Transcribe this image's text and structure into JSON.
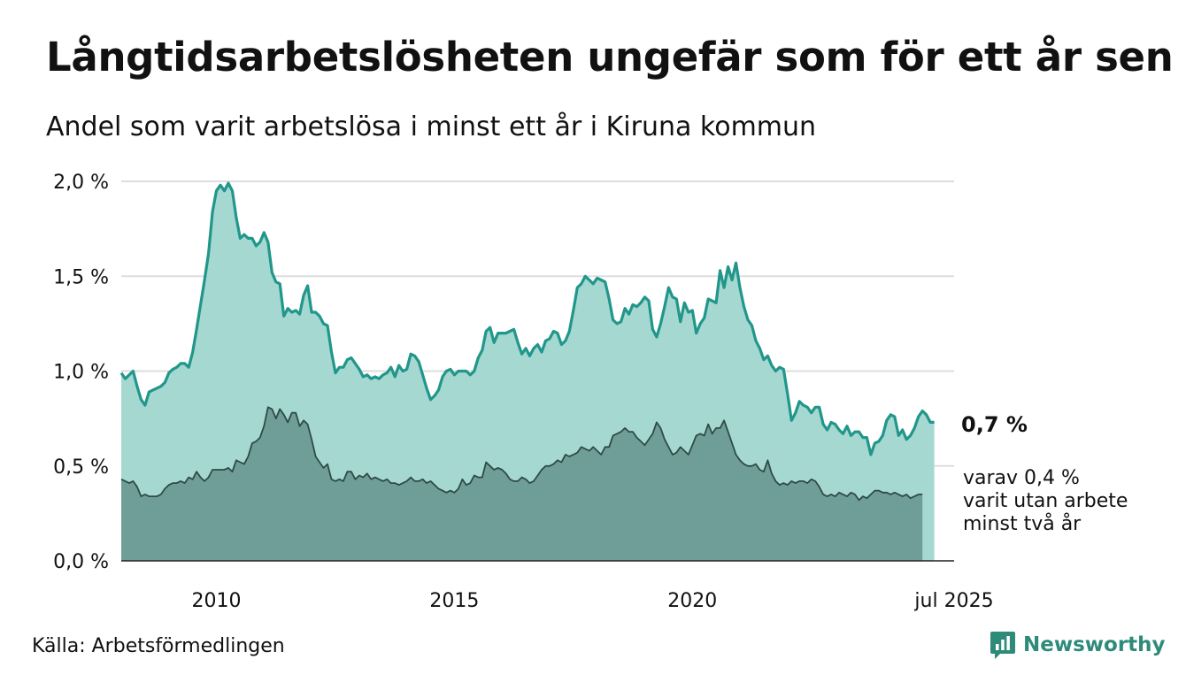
{
  "title": "Långtidsarbetslösheten ungefär som för ett år sen",
  "subtitle": "Andel som varit arbetslösa i minst ett år i Kiruna kommun",
  "source": "Källa: Arbetsförmedlingen",
  "brand": "Newsworthy",
  "end_label_main": "0,7 %",
  "end_label_sub": [
    "varav 0,4 %",
    "varit utan arbete",
    "minst två år"
  ],
  "colors": {
    "series1_fill": "#a6d8d2",
    "series1_line": "#21968a",
    "series2_fill": "#6f9e98",
    "series2_line": "#2f4a47",
    "grid": "#dddddd",
    "brand": "#2e8b7a"
  },
  "chart_data": {
    "type": "area",
    "title": "Långtidsarbetslösheten ungefär som för ett år sen",
    "subtitle": "Andel som varit arbetslösa i minst ett år i Kiruna kommun",
    "xlabel": "",
    "ylabel": "",
    "x_start": "2008-01",
    "x_end": "2025-07",
    "x_step": "month",
    "xlim": [
      2008.0,
      2025.5
    ],
    "ylim": [
      0,
      2.0
    ],
    "x_ticks": [
      {
        "value": 2010,
        "label": "2010"
      },
      {
        "value": 2015,
        "label": "2015"
      },
      {
        "value": 2020,
        "label": "2020"
      },
      {
        "value": 2025.5,
        "label": "jul 2025"
      }
    ],
    "y_ticks": [
      {
        "value": 0,
        "label": "0,0 %"
      },
      {
        "value": 0.5,
        "label": "0,5 %"
      },
      {
        "value": 1.0,
        "label": "1,0 %"
      },
      {
        "value": 1.5,
        "label": "1,5 %"
      },
      {
        "value": 2.0,
        "label": "2,0 %"
      }
    ],
    "grid": true,
    "series": [
      {
        "values": [
          0.99,
          0.96,
          0.98,
          1.0,
          0.92,
          0.85,
          0.82,
          0.89,
          0.9,
          0.91,
          0.92,
          0.94,
          0.99,
          1.01,
          1.02,
          1.04,
          1.04,
          1.02,
          1.1,
          1.22,
          1.35,
          1.48,
          1.62,
          1.84,
          1.95,
          1.98,
          1.95,
          1.99,
          1.95,
          1.81,
          1.7,
          1.72,
          1.7,
          1.7,
          1.66,
          1.68,
          1.73,
          1.68,
          1.52,
          1.47,
          1.46,
          1.29,
          1.33,
          1.31,
          1.32,
          1.3,
          1.4,
          1.45,
          1.31,
          1.31,
          1.29,
          1.25,
          1.24,
          1.1,
          0.99,
          1.02,
          1.02,
          1.06,
          1.07,
          1.04,
          1.01,
          0.97,
          0.98,
          0.96,
          0.97,
          0.96,
          0.98,
          0.99,
          1.02,
          0.97,
          1.03,
          1.0,
          1.01,
          1.09,
          1.08,
          1.05,
          0.98,
          0.91,
          0.85,
          0.87,
          0.9,
          0.97,
          1.0,
          1.01,
          0.98,
          1.0,
          1.0,
          1.0,
          0.98,
          1.0,
          1.07,
          1.11,
          1.21,
          1.23,
          1.15,
          1.2,
          1.2,
          1.2,
          1.21,
          1.22,
          1.15,
          1.09,
          1.12,
          1.08,
          1.12,
          1.14,
          1.1,
          1.16,
          1.17,
          1.21,
          1.2,
          1.14,
          1.16,
          1.21,
          1.32,
          1.44,
          1.46,
          1.5,
          1.48,
          1.46,
          1.49,
          1.48,
          1.47,
          1.38,
          1.27,
          1.25,
          1.26,
          1.33,
          1.3,
          1.35,
          1.34,
          1.36,
          1.39,
          1.37,
          1.22,
          1.18,
          1.25,
          1.34,
          1.44,
          1.39,
          1.38,
          1.26,
          1.36,
          1.31,
          1.32,
          1.2,
          1.25,
          1.28,
          1.38,
          1.37,
          1.36,
          1.53,
          1.44,
          1.55,
          1.48,
          1.57,
          1.44,
          1.34,
          1.27,
          1.24,
          1.16,
          1.12,
          1.06,
          1.08,
          1.03,
          1.0,
          1.02,
          1.01,
          0.88,
          0.74,
          0.78,
          0.84,
          0.82,
          0.81,
          0.78,
          0.81,
          0.81,
          0.72,
          0.69,
          0.73,
          0.72,
          0.69,
          0.67,
          0.71,
          0.66,
          0.68,
          0.68,
          0.65,
          0.65,
          0.56,
          0.62,
          0.63,
          0.66,
          0.74,
          0.77,
          0.76,
          0.66,
          0.69,
          0.64,
          0.66,
          0.7,
          0.76,
          0.79,
          0.77,
          0.73,
          0.73
        ]
      },
      {
        "values": [
          0.43,
          0.42,
          0.41,
          0.42,
          0.39,
          0.34,
          0.35,
          0.34,
          0.34,
          0.34,
          0.35,
          0.38,
          0.4,
          0.41,
          0.41,
          0.42,
          0.41,
          0.44,
          0.43,
          0.47,
          0.44,
          0.42,
          0.44,
          0.48,
          0.48,
          0.48,
          0.48,
          0.49,
          0.47,
          0.53,
          0.52,
          0.51,
          0.55,
          0.62,
          0.63,
          0.65,
          0.71,
          0.81,
          0.8,
          0.75,
          0.8,
          0.77,
          0.73,
          0.78,
          0.78,
          0.71,
          0.74,
          0.72,
          0.64,
          0.55,
          0.52,
          0.49,
          0.51,
          0.43,
          0.42,
          0.43,
          0.42,
          0.47,
          0.47,
          0.43,
          0.45,
          0.44,
          0.46,
          0.43,
          0.44,
          0.43,
          0.42,
          0.43,
          0.41,
          0.41,
          0.4,
          0.41,
          0.42,
          0.44,
          0.42,
          0.42,
          0.43,
          0.41,
          0.42,
          0.4,
          0.38,
          0.37,
          0.36,
          0.37,
          0.36,
          0.38,
          0.43,
          0.4,
          0.41,
          0.45,
          0.44,
          0.44,
          0.52,
          0.5,
          0.48,
          0.49,
          0.48,
          0.46,
          0.43,
          0.42,
          0.42,
          0.44,
          0.43,
          0.41,
          0.42,
          0.45,
          0.48,
          0.5,
          0.5,
          0.51,
          0.53,
          0.52,
          0.56,
          0.55,
          0.56,
          0.57,
          0.6,
          0.59,
          0.58,
          0.6,
          0.58,
          0.56,
          0.6,
          0.6,
          0.66,
          0.67,
          0.68,
          0.7,
          0.68,
          0.68,
          0.65,
          0.63,
          0.61,
          0.64,
          0.67,
          0.73,
          0.7,
          0.64,
          0.6,
          0.56,
          0.57,
          0.6,
          0.58,
          0.56,
          0.61,
          0.66,
          0.67,
          0.66,
          0.72,
          0.67,
          0.7,
          0.7,
          0.74,
          0.68,
          0.62,
          0.56,
          0.53,
          0.51,
          0.5,
          0.5,
          0.51,
          0.48,
          0.47,
          0.53,
          0.46,
          0.42,
          0.4,
          0.41,
          0.4,
          0.42,
          0.41,
          0.42,
          0.42,
          0.41,
          0.43,
          0.42,
          0.39,
          0.35,
          0.34,
          0.35,
          0.34,
          0.36,
          0.35,
          0.34,
          0.36,
          0.35,
          0.32,
          0.34,
          0.33,
          0.35,
          0.37,
          0.37,
          0.36,
          0.36,
          0.35,
          0.36,
          0.35,
          0.34,
          0.35,
          0.33,
          0.34,
          0.35,
          0.35
        ]
      }
    ]
  }
}
